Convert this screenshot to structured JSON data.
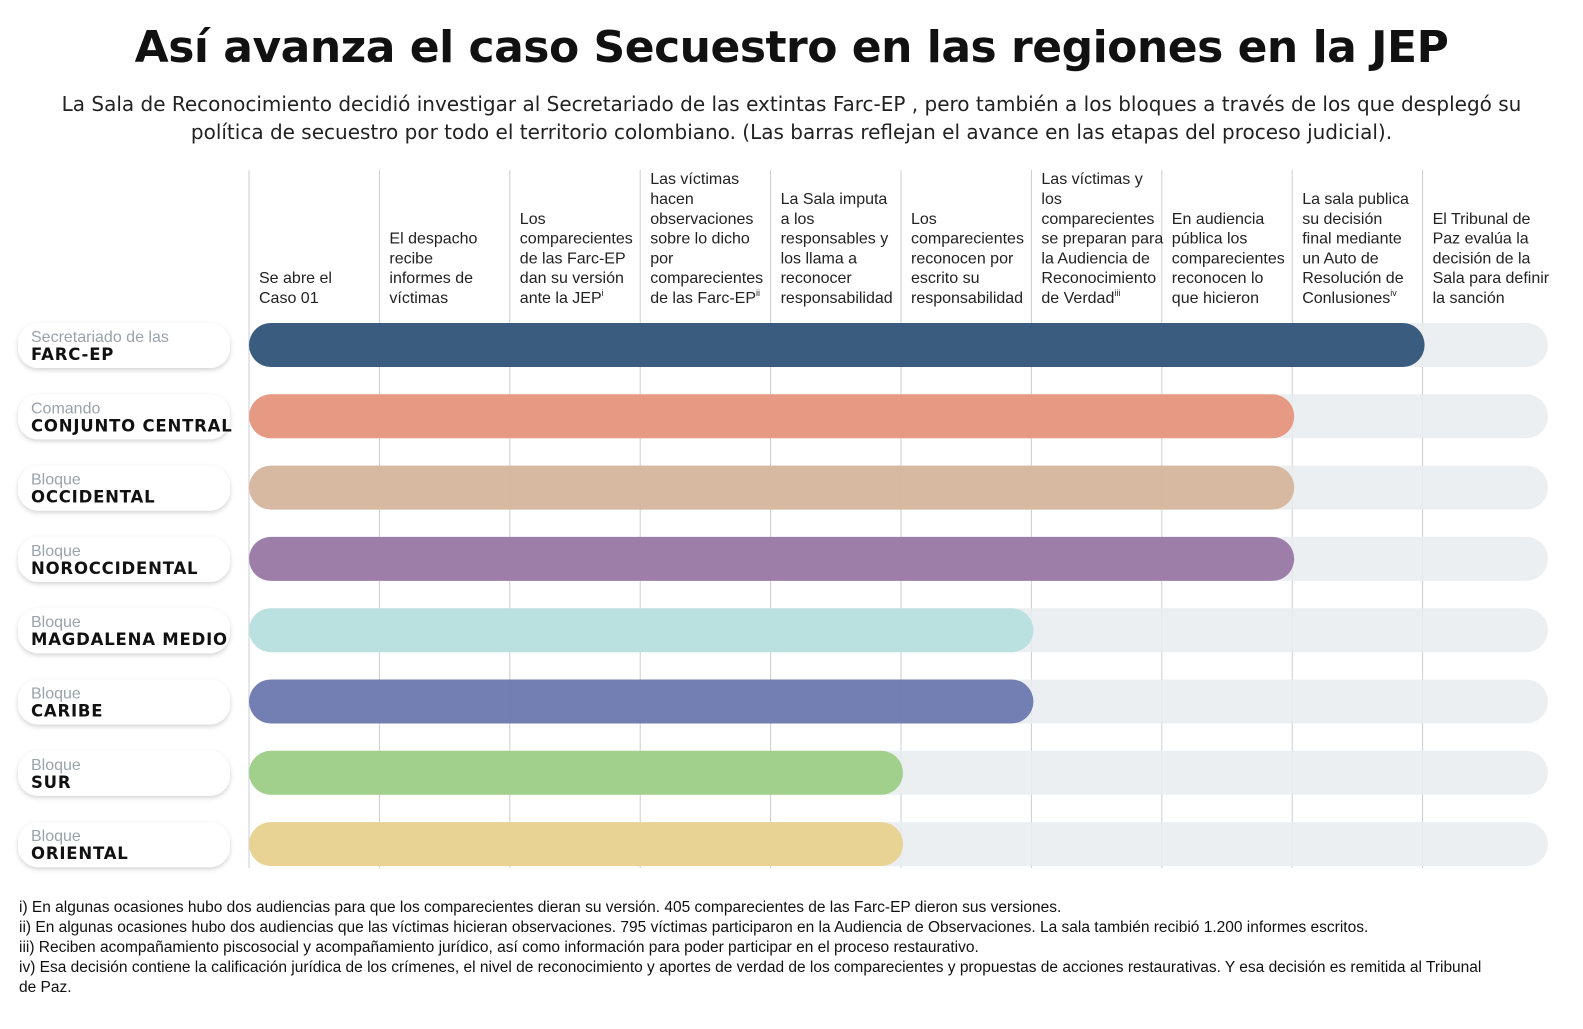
{
  "title": "Así avanza el caso Secuestro en las regiones en la JEP",
  "subtitle": "La Sala de Reconocimiento decidió investigar al Secretariado de las extintas Farc-EP , pero también a los bloques a través de los que desplegó su política de secuestro por todo el territorio colombiano. (Las barras reflejan el avance en las etapas del proceso judicial).",
  "colors": {
    "track": "#e9ecef",
    "gridline": "#c9ced3",
    "prefix_text": "#9aa3ab"
  },
  "chart_data": {
    "type": "bar",
    "orientation": "horizontal",
    "stages": [
      {
        "lines": [
          "Se abre el",
          "Caso 01"
        ],
        "sup": ""
      },
      {
        "lines": [
          "El despacho",
          "recibe",
          "informes de",
          "víctimas"
        ],
        "sup": ""
      },
      {
        "lines": [
          "Los",
          "comparecientes",
          "de las Farc-EP",
          "dan su versión",
          "ante la JEP"
        ],
        "sup": "i"
      },
      {
        "lines": [
          "Las víctimas",
          "hacen",
          "observaciones",
          "sobre lo dicho",
          "por",
          "comparecientes",
          "de las Farc-EP"
        ],
        "sup": "ii"
      },
      {
        "lines": [
          "La Sala imputa",
          "a los",
          "responsables y",
          "los llama a",
          "reconocer",
          "responsabilidad"
        ],
        "sup": ""
      },
      {
        "lines": [
          "Los",
          "comparecientes",
          "reconocen por",
          "escrito su",
          "responsabilidad"
        ],
        "sup": ""
      },
      {
        "lines": [
          "Las víctimas y",
          "los",
          "comparecientes",
          "se preparan para",
          "la Audiencia de",
          "Reconocimiento",
          "de Verdad"
        ],
        "sup": "iii"
      },
      {
        "lines": [
          "En audiencia",
          "pública los",
          "comparecientes",
          "reconocen lo",
          "que hicieron"
        ],
        "sup": ""
      },
      {
        "lines": [
          "La sala publica",
          "su decisión",
          "final mediante",
          "un Auto de",
          "Resolución de",
          "Conlusiones"
        ],
        "sup": "iv"
      },
      {
        "lines": [
          "El Tribunal de",
          "Paz evalúa la",
          "decisión de la",
          "Sala para definir",
          "la sanción"
        ],
        "sup": ""
      }
    ],
    "total_stages": 10,
    "series": [
      {
        "prefix": "Secretariado de las",
        "name": "FARC-EP",
        "stages_completed": 9,
        "color": "#2a4f74"
      },
      {
        "prefix": "Comando",
        "name": "CONJUNTO CENTRAL",
        "stages_completed": 8,
        "color": "#e5937b"
      },
      {
        "prefix": "Bloque",
        "name": "OCCIDENTAL",
        "stages_completed": 8,
        "color": "#d5b39a"
      },
      {
        "prefix": "Bloque",
        "name": "NOROCCIDENTAL",
        "stages_completed": 8,
        "color": "#9574a3"
      },
      {
        "prefix": "Bloque",
        "name": "MAGDALENA MEDIO",
        "stages_completed": 6,
        "color": "#b5dfdd"
      },
      {
        "prefix": "Bloque",
        "name": "CARIBE",
        "stages_completed": 6,
        "color": "#6874ae"
      },
      {
        "prefix": "Bloque",
        "name": "SUR",
        "stages_completed": 5,
        "color": "#99cd82"
      },
      {
        "prefix": "Bloque",
        "name": "ORIENTAL",
        "stages_completed": 5,
        "color": "#e8d08c"
      }
    ]
  },
  "footnotes": [
    "i) En algunas ocasiones hubo dos audiencias para que los comparecientes dieran su versión. 405 comparecientes de las Farc-EP dieron sus versiones.",
    "ii) En algunas ocasiones hubo dos audiencias que las víctimas hicieran observaciones. 795 víctimas participaron en la Audiencia de Observaciones. La sala también recibió 1.200 informes escritos.",
    "iii) Reciben acompañamiento piscosocial y acompañamiento jurídico, así como información para poder participar en el proceso restaurativo.",
    "iv) Esa decisión contiene la calificación jurídica de los crímenes, el nivel de reconocimiento y aportes de verdad de los comparecientes y propuestas de acciones restaurativas. Y esa decisión es remitida al Tribunal de Paz."
  ]
}
